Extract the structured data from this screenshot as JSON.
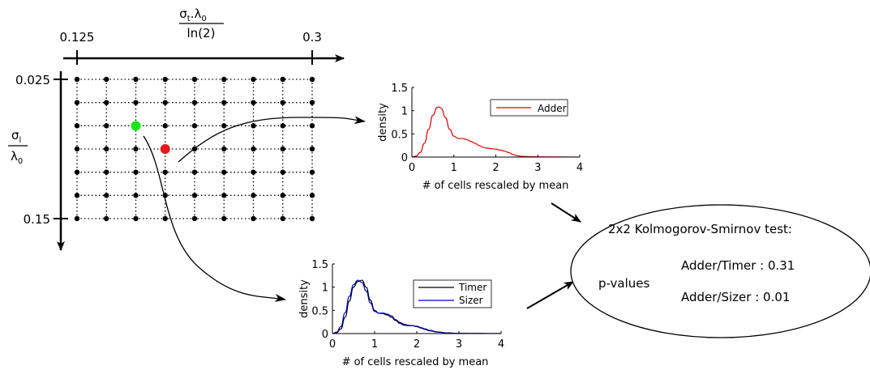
{
  "param_grid": {
    "x_axis": {
      "label_numerator": "σ",
      "label_numerator_sub": "t",
      "label_numerator_rest": ".λ",
      "label_numerator_sub2": "0",
      "label_denominator": "ln(2)",
      "tick_start": "0.125",
      "tick_end": "0.3"
    },
    "y_axis": {
      "label_numerator": "σ",
      "label_numerator_sub": "l",
      "label_denominator": "λ",
      "label_denominator_sub": "0",
      "tick_start": "0.025",
      "tick_end": "0.15"
    },
    "rows": 6,
    "cols": 8,
    "highlight_green": {
      "row": 2,
      "col": 2,
      "color": "#19e619"
    },
    "highlight_red": {
      "row": 3,
      "col": 3,
      "color": "#e61919"
    }
  },
  "chart_data": [
    {
      "type": "line",
      "xlabel": "# of cells rescaled by mean",
      "ylabel": "density",
      "xlim": [
        0,
        4
      ],
      "ylim": [
        0,
        1.5
      ],
      "xticks": [
        "0",
        "1",
        "2",
        "3",
        "4"
      ],
      "yticks": [
        "0",
        "0.5",
        "1",
        "1.5"
      ],
      "legend_position": "top-right",
      "grid": false,
      "series": [
        {
          "name": "Adder",
          "color": "#dd0000",
          "x": [
            0,
            0.1,
            0.2,
            0.3,
            0.4,
            0.5,
            0.6,
            0.65,
            0.7,
            0.8,
            0.9,
            1.0,
            1.1,
            1.2,
            1.3,
            1.4,
            1.5,
            1.6,
            1.7,
            1.8,
            1.9,
            2.0,
            2.1,
            2.2,
            2.3,
            2.4,
            2.5,
            2.6,
            2.8,
            3.0,
            3.5,
            4.0
          ],
          "y": [
            0,
            0.02,
            0.1,
            0.3,
            0.6,
            0.9,
            1.07,
            1.08,
            1.05,
            0.85,
            0.6,
            0.45,
            0.4,
            0.4,
            0.38,
            0.34,
            0.3,
            0.25,
            0.21,
            0.19,
            0.18,
            0.17,
            0.15,
            0.13,
            0.1,
            0.06,
            0.03,
            0.015,
            0.01,
            0.005,
            0.002,
            0.001
          ]
        }
      ]
    },
    {
      "type": "line",
      "xlabel": "# of cells rescaled by mean",
      "ylabel": "density",
      "xlim": [
        0,
        4
      ],
      "ylim": [
        0,
        1.5
      ],
      "xticks": [
        "0",
        "1",
        "2",
        "3",
        "4"
      ],
      "yticks": [
        "0",
        "0.5",
        "1",
        "1.5"
      ],
      "legend_position": "top-right",
      "grid": false,
      "series": [
        {
          "name": "Timer",
          "color": "#000000",
          "x": [
            0,
            0.1,
            0.2,
            0.3,
            0.4,
            0.5,
            0.6,
            0.7,
            0.8,
            0.9,
            1.0,
            1.1,
            1.2,
            1.3,
            1.4,
            1.5,
            1.6,
            1.7,
            1.8,
            1.9,
            2.0,
            2.1,
            2.2,
            2.3,
            2.5,
            2.7,
            3.0,
            3.5,
            4.0
          ],
          "y": [
            0,
            0.02,
            0.1,
            0.35,
            0.7,
            1.0,
            1.12,
            1.15,
            1.0,
            0.72,
            0.5,
            0.44,
            0.43,
            0.4,
            0.35,
            0.28,
            0.22,
            0.18,
            0.17,
            0.17,
            0.15,
            0.12,
            0.09,
            0.06,
            0.03,
            0.015,
            0.005,
            0.002,
            0.001
          ]
        },
        {
          "name": "Sizer",
          "color": "#0000cc",
          "x": [
            0,
            0.1,
            0.2,
            0.3,
            0.4,
            0.5,
            0.6,
            0.7,
            0.8,
            0.9,
            1.0,
            1.1,
            1.2,
            1.3,
            1.4,
            1.5,
            1.6,
            1.7,
            1.8,
            1.9,
            2.0,
            2.1,
            2.2,
            2.3,
            2.5,
            2.7,
            3.0,
            3.5,
            4.0
          ],
          "y": [
            0,
            0.03,
            0.15,
            0.45,
            0.8,
            1.05,
            1.15,
            1.1,
            0.92,
            0.66,
            0.48,
            0.44,
            0.44,
            0.42,
            0.38,
            0.3,
            0.24,
            0.2,
            0.18,
            0.17,
            0.16,
            0.13,
            0.1,
            0.07,
            0.035,
            0.015,
            0.005,
            0.002,
            0.001
          ]
        }
      ]
    }
  ],
  "ks_test": {
    "title": "2x2 Kolmogorov-Smirnov test:",
    "pvalues_label": "p-values",
    "adder_timer": "Adder/Timer : 0.31",
    "adder_sizer": "Adder/Sizer : 0.01"
  }
}
